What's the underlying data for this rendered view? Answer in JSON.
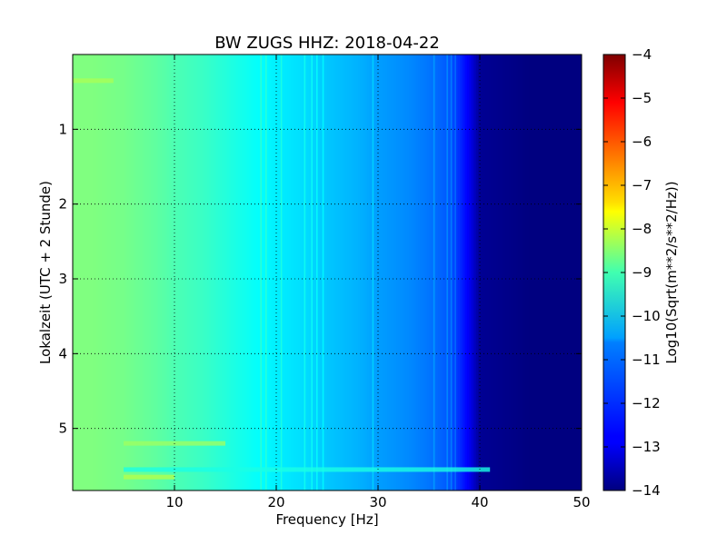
{
  "chart_data": {
    "type": "heatmap",
    "title": "BW ZUGS HHZ: 2018-04-22",
    "xlabel": "Frequency [Hz]",
    "ylabel": "Lokalzeit (UTC + 2 Stunde)",
    "xlim": [
      0,
      50
    ],
    "ylim": [
      0,
      5.83
    ],
    "y_inverted": true,
    "grid": true,
    "x_ticks": [
      10,
      20,
      30,
      40,
      50
    ],
    "y_ticks": [
      1,
      2,
      3,
      4,
      5
    ],
    "colormap": "jet",
    "colorbar": {
      "label": "Log10(Sqrt(m**2/s**2/Hz))",
      "range": [
        -14,
        -4
      ],
      "ticks": [
        -4,
        -5,
        -6,
        -7,
        -8,
        -9,
        -10,
        -11,
        -12,
        -13,
        -14
      ]
    },
    "spectrum_profile": {
      "frequency_hz": [
        0,
        2,
        5,
        8,
        10,
        13,
        15,
        18,
        20,
        23,
        25,
        28,
        30,
        33,
        35,
        37,
        38,
        39,
        40,
        45,
        50
      ],
      "level": [
        -9.0,
        -9.0,
        -9.1,
        -9.3,
        -9.5,
        -9.7,
        -9.9,
        -10.2,
        -10.4,
        -10.6,
        -10.8,
        -11.0,
        -11.2,
        -11.4,
        -11.6,
        -11.9,
        -12.3,
        -12.9,
        -13.8,
        -14.0,
        -14.0
      ]
    },
    "spectral_lines_hz": [
      18.5,
      19.0,
      20.5,
      22.8,
      23.5,
      24.0,
      24.6,
      29.5,
      35.5,
      36.8,
      37.2,
      37.6
    ],
    "events": [
      {
        "time": 0.35,
        "frequency_range": [
          0,
          4
        ],
        "level": -8.6
      },
      {
        "time": 5.2,
        "frequency_range": [
          5,
          15
        ],
        "level": -8.7
      },
      {
        "time": 5.55,
        "frequency_range": [
          5,
          41
        ],
        "level": -10.0
      },
      {
        "time": 5.65,
        "frequency_range": [
          5,
          10
        ],
        "level": -8.5
      }
    ]
  }
}
